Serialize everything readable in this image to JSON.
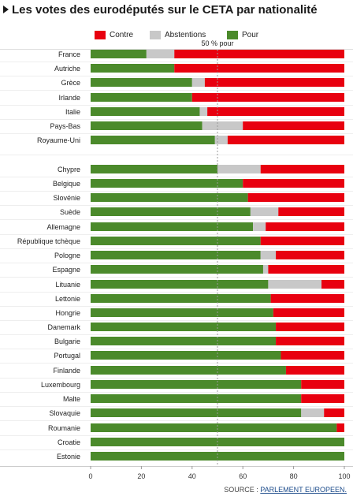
{
  "title": "Les votes des eurodéputés sur le CETA par nationalité",
  "legend": [
    {
      "label": "Contre",
      "color": "#e8000f"
    },
    {
      "label": "Abstentions",
      "color": "#c8c8c8"
    },
    {
      "label": "Pour",
      "color": "#4b8a2b"
    }
  ],
  "source": {
    "prefix": "SOURCE : ",
    "name": "PARLEMENT EUROPEEN."
  },
  "chart_data": {
    "type": "bar",
    "orientation": "horizontal",
    "stacked": true,
    "title": "Les votes des eurodéputés sur le CETA par nationalité",
    "reference_line": {
      "value": 50,
      "label": "50 % pour"
    },
    "xlim": [
      0,
      100
    ],
    "xticks": [
      0,
      20,
      40,
      60,
      80,
      100
    ],
    "grid": false,
    "legend_position": "top",
    "categories": [
      "France",
      "Autriche",
      "Grèce",
      "Irlande",
      "Italie",
      "Pays-Bas",
      "Royaume-Uni",
      "Chypre",
      "Belgique",
      "Slovénie",
      "Suède",
      "Allemagne",
      "République tchèque",
      "Pologne",
      "Espagne",
      "Lituanie",
      "Lettonie",
      "Hongrie",
      "Danemark",
      "Bulgarie",
      "Portugal",
      "Finlande",
      "Luxembourg",
      "Malte",
      "Slovaquie",
      "Roumanie",
      "Croatie",
      "Estonie"
    ],
    "groups": [
      7,
      21
    ],
    "series": [
      {
        "name": "Pour",
        "color": "#4b8a2b",
        "values": [
          22,
          33,
          40,
          40,
          43,
          44,
          49,
          50,
          60,
          62,
          63,
          64,
          67,
          67,
          68,
          70,
          71,
          72,
          73,
          73,
          75,
          77,
          83,
          83,
          83,
          97,
          100,
          100
        ]
      },
      {
        "name": "Abstentions",
        "color": "#c8c8c8",
        "values": [
          11,
          0,
          5,
          0,
          3,
          16,
          5,
          17,
          0,
          0,
          11,
          5,
          0,
          6,
          2,
          21,
          0,
          0,
          0,
          0,
          0,
          0,
          0,
          0,
          9,
          0,
          0,
          0
        ]
      },
      {
        "name": "Contre",
        "color": "#e8000f",
        "values": [
          67,
          67,
          55,
          60,
          54,
          40,
          46,
          33,
          40,
          38,
          26,
          31,
          33,
          27,
          30,
          9,
          29,
          28,
          27,
          27,
          25,
          23,
          17,
          17,
          8,
          3,
          0,
          0
        ]
      }
    ]
  }
}
